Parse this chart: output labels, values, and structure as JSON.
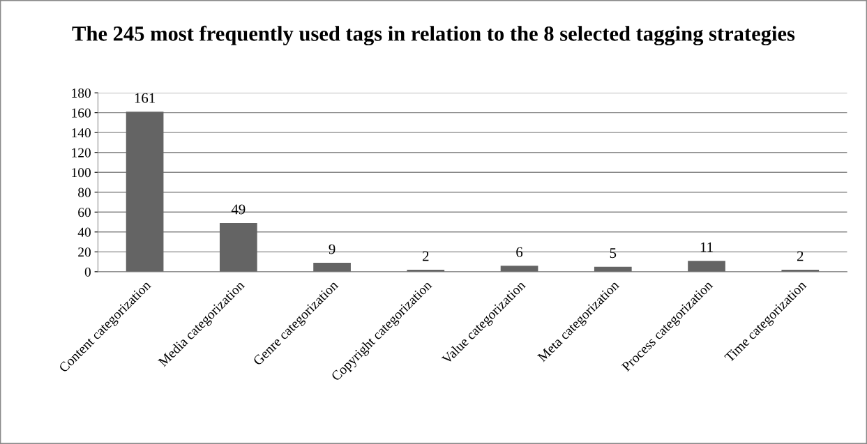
{
  "chart_data": {
    "type": "bar",
    "title": "The 245 most frequently used tags in relation to the 8 selected tagging strategies",
    "categories": [
      "Content categorization",
      "Media categorization",
      "Genre categorization",
      "Copyright categorization",
      "Value categorization",
      "Meta categorization",
      "Process categorization",
      "Time categorization"
    ],
    "values": [
      161,
      49,
      9,
      2,
      6,
      5,
      11,
      2
    ],
    "color": "#646464",
    "ylim": [
      0,
      180
    ],
    "yticks": [
      0,
      20,
      40,
      60,
      80,
      100,
      120,
      140,
      160,
      180
    ],
    "grid": "y",
    "data_labels": true,
    "legend": false
  }
}
